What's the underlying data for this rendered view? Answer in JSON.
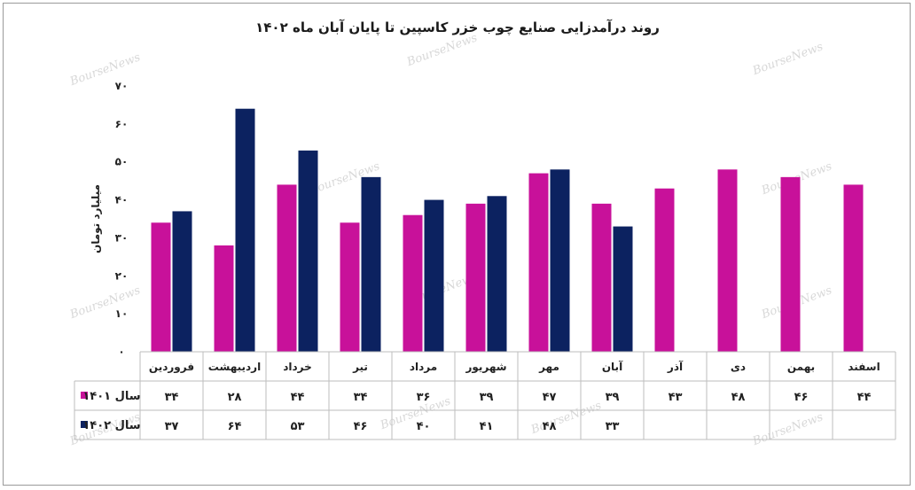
{
  "chart_data": {
    "type": "bar",
    "title": "روند درآمدزایی صنایع چوب خزر کاسپین تا پایان آبان ماه ۱۴۰۲",
    "ylabel": "میلیارد تومان",
    "xlabel": "",
    "ylim": [
      0,
      70
    ],
    "yticks": [
      "۰",
      "۱۰",
      "۲۰",
      "۳۰",
      "۴۰",
      "۵۰",
      "۶۰",
      "۷۰"
    ],
    "grid": false,
    "categories": [
      "فروردین",
      "اردیبهشت",
      "خرداد",
      "تیر",
      "مرداد",
      "شهریور",
      "مهر",
      "آبان",
      "آذر",
      "دی",
      "بهمن",
      "اسفند"
    ],
    "series": [
      {
        "name": "سال ۱۴۰۱",
        "color": "#c8119a",
        "values": [
          34,
          28,
          44,
          34,
          36,
          39,
          47,
          39,
          43,
          48,
          46,
          44
        ],
        "labels": [
          "۳۴",
          "۲۸",
          "۴۴",
          "۳۴",
          "۳۶",
          "۳۹",
          "۴۷",
          "۳۹",
          "۴۳",
          "۴۸",
          "۴۶",
          "۴۴"
        ]
      },
      {
        "name": "سال ۱۴۰۲",
        "color": "#0c2260",
        "values": [
          37,
          64,
          53,
          46,
          40,
          41,
          48,
          33,
          null,
          null,
          null,
          null
        ],
        "labels": [
          "۳۷",
          "۶۴",
          "۵۳",
          "۴۶",
          "۴۰",
          "۴۱",
          "۴۸",
          "۳۳",
          "",
          "",
          "",
          ""
        ]
      }
    ],
    "legend_placement": "data-table-left"
  },
  "watermark": "BourseNews"
}
